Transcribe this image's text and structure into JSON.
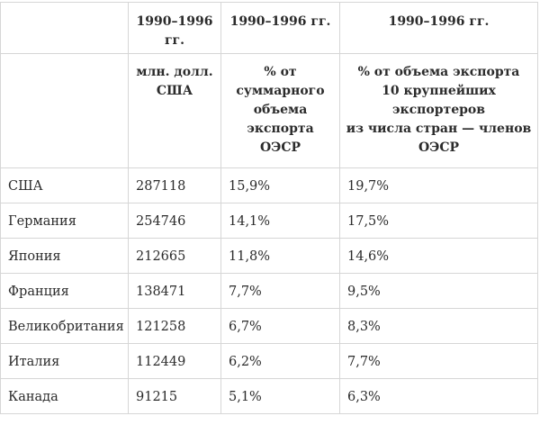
{
  "table": {
    "header_row_1": [
      "",
      "1990–1996 гг.",
      "1990–1996 гг.",
      "1990–1996 гг."
    ],
    "header_row_2": [
      "",
      "млн. долл.\nСША",
      "% от\nсуммарного\nобъема\nэкспорта\nОЭСР",
      "% от объема экспорта\n10 крупнейших\nэкспортеров\nиз числа стран — членов\nОЭСР"
    ],
    "rows": [
      {
        "country": "США",
        "value_mln_usd": "287118",
        "share_oecd_total": "15,9%",
        "share_top10": "19,7%"
      },
      {
        "country": "Германия",
        "value_mln_usd": "254746",
        "share_oecd_total": "14,1%",
        "share_top10": "17,5%"
      },
      {
        "country": "Япония",
        "value_mln_usd": "212665",
        "share_oecd_total": "11,8%",
        "share_top10": "14,6%"
      },
      {
        "country": "Франция",
        "value_mln_usd": "138471",
        "share_oecd_total": "7,7%",
        "share_top10": "9,5%"
      },
      {
        "country": "Великобритания",
        "value_mln_usd": "121258",
        "share_oecd_total": "6,7%",
        "share_top10": "8,3%"
      },
      {
        "country": "Италия",
        "value_mln_usd": "112449",
        "share_oecd_total": "6,2%",
        "share_top10": "7,7%"
      },
      {
        "country": "Канада",
        "value_mln_usd": "91215",
        "share_oecd_total": "5,1%",
        "share_top10": "6,3%"
      }
    ]
  }
}
